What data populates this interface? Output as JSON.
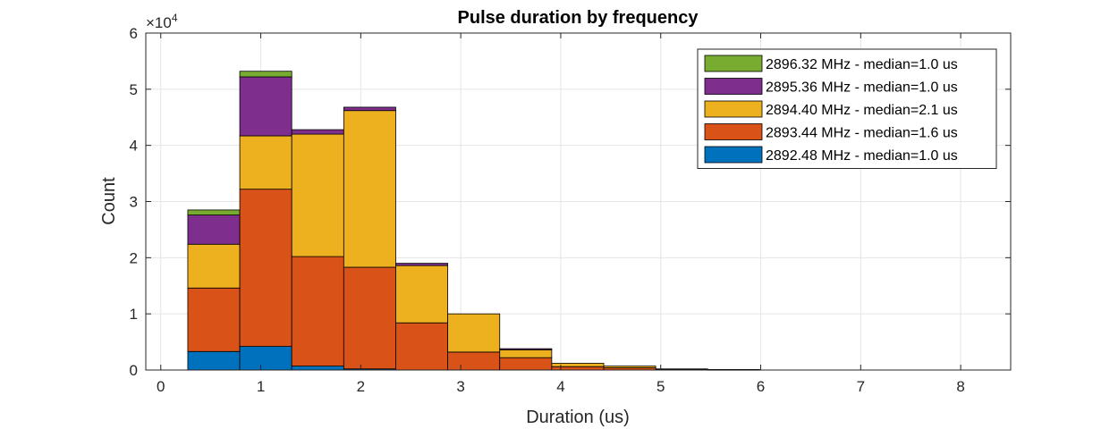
{
  "chart_data": {
    "type": "bar",
    "stacked": true,
    "title": "Pulse duration by frequency",
    "xlabel": "Duration (us)",
    "ylabel": "Count",
    "y_exponent_base": "×10",
    "y_exponent_power": "4",
    "xlim": [
      -0.15,
      8.5
    ],
    "ylim": [
      0,
      6
    ],
    "xticks": [
      0,
      1,
      2,
      3,
      4,
      5,
      6,
      7,
      8
    ],
    "yticks": [
      0,
      1,
      2,
      3,
      4,
      5,
      6
    ],
    "grid": true,
    "legend_position": "top-right",
    "bin_edges": [
      0.27,
      0.79,
      1.31,
      1.83,
      2.35,
      2.87,
      3.39,
      3.91,
      4.43,
      4.95,
      5.47,
      5.99
    ],
    "series": [
      {
        "name": "2892.48 MHz - median=1.0 us",
        "color": "#0072BD",
        "values": [
          0.33,
          0.42,
          0.07,
          0.02,
          0.0,
          0.0,
          0.0,
          0.0,
          0.0,
          0.0,
          0.0
        ]
      },
      {
        "name": "2893.44 MHz - median=1.6 us",
        "color": "#D95319",
        "values": [
          1.13,
          2.8,
          1.95,
          1.81,
          0.84,
          0.32,
          0.22,
          0.06,
          0.04,
          0.01,
          0.005
        ]
      },
      {
        "name": "2894.40 MHz - median=2.1 us",
        "color": "#EDB120",
        "values": [
          0.78,
          0.95,
          2.18,
          2.79,
          1.02,
          0.68,
          0.14,
          0.06,
          0.03,
          0.01,
          0.005
        ]
      },
      {
        "name": "2895.36 MHz - median=1.0 us",
        "color": "#7E2F8E",
        "values": [
          0.52,
          1.05,
          0.08,
          0.06,
          0.04,
          0.0,
          0.02,
          0.0,
          0.0,
          0.0,
          0.0
        ]
      },
      {
        "name": "2896.32 MHz - median=1.0 us",
        "color": "#77AC30",
        "values": [
          0.09,
          0.1,
          0.0,
          0.0,
          0.0,
          0.0,
          0.0,
          0.0,
          0.0,
          0.0,
          0.0
        ]
      }
    ]
  }
}
